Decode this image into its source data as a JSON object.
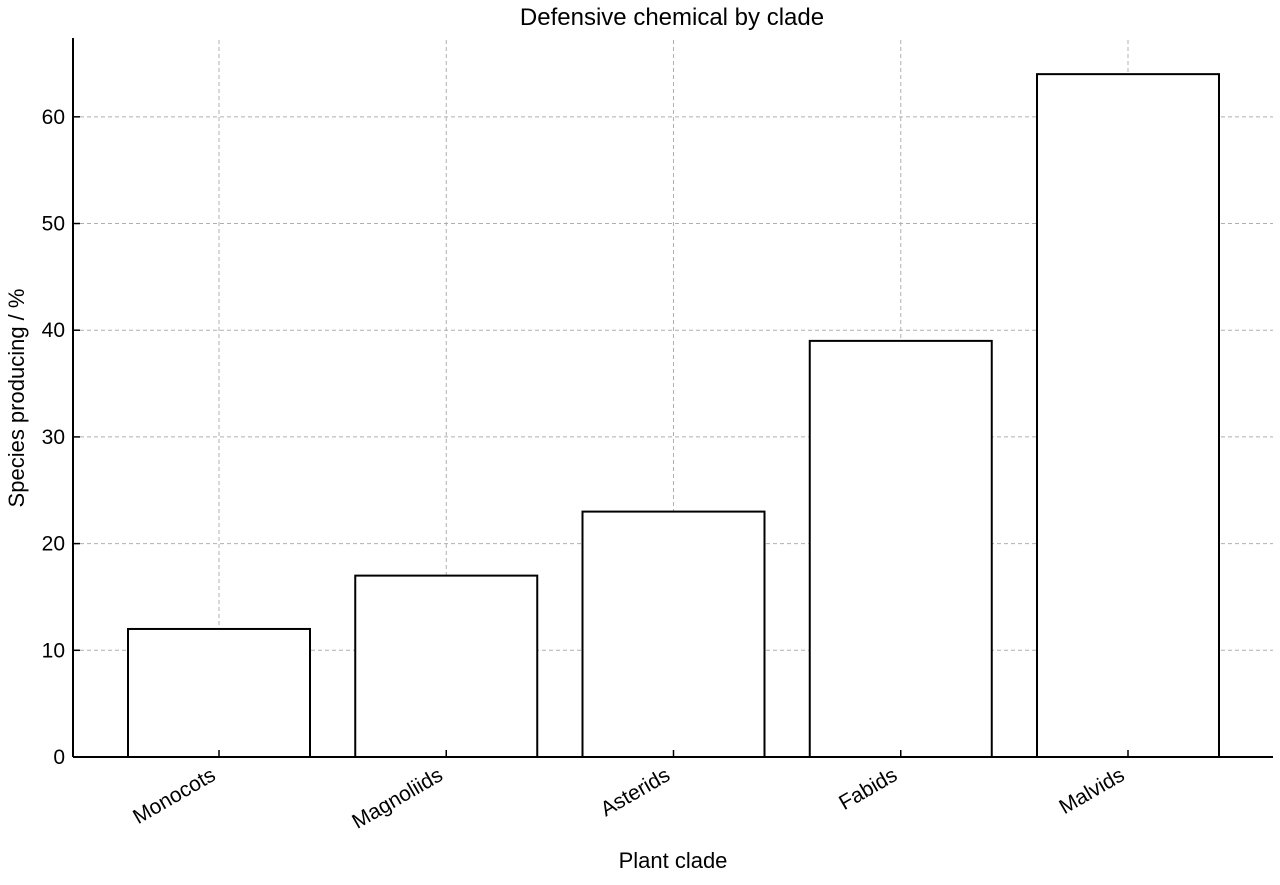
{
  "chart_data": {
    "type": "bar",
    "title": "Defensive chemical by clade",
    "xlabel": "Plant clade",
    "ylabel": "Species producing / %",
    "categories": [
      "Monocots",
      "Magnoliids",
      "Asterids",
      "Fabids",
      "Malvids"
    ],
    "values": [
      12,
      17,
      23,
      39,
      64
    ],
    "ylim": [
      0,
      67.2
    ],
    "yticks": [
      0,
      10,
      20,
      30,
      40,
      50,
      60
    ],
    "grid": true,
    "bar_fill": "#ffffff",
    "bar_edge": "#000000",
    "grid_color": "#b0b0b0"
  }
}
